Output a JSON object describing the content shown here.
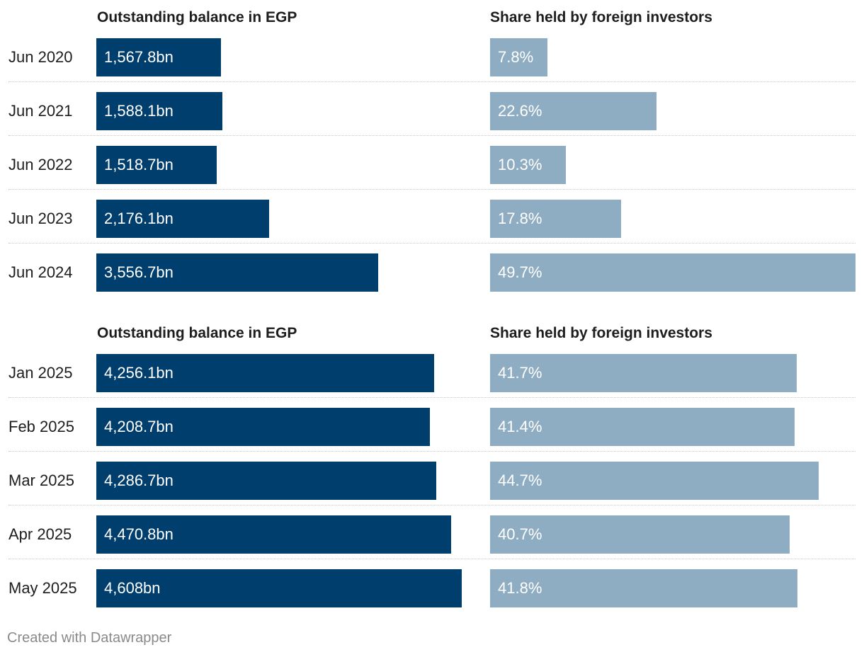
{
  "chart_data": [
    {
      "type": "bar",
      "orientation": "horizontal",
      "columns": [
        "Outstanding balance in EGP",
        "Share held by foreign investors"
      ],
      "categories": [
        "Jun 2020",
        "Jun 2021",
        "Jun 2022",
        "Jun 2023",
        "Jun 2024"
      ],
      "series": [
        {
          "name": "Outstanding balance in EGP",
          "unit": "bn EGP",
          "values": [
            1567.8,
            1588.1,
            1518.7,
            2176.1,
            3556.7
          ],
          "labels": [
            "1,567.8bn",
            "1,588.1bn",
            "1,518.7bn",
            "2,176.1bn",
            "3,556.7bn"
          ]
        },
        {
          "name": "Share held by foreign investors",
          "unit": "%",
          "values": [
            7.8,
            22.6,
            10.3,
            17.8,
            49.7
          ],
          "labels": [
            "7.8%",
            "22.6%",
            "10.3%",
            "17.8%",
            "49.7%"
          ]
        }
      ]
    },
    {
      "type": "bar",
      "orientation": "horizontal",
      "columns": [
        "Outstanding balance in EGP",
        "Share held by foreign investors"
      ],
      "categories": [
        "Jan 2025",
        "Feb 2025",
        "Mar 2025",
        "Apr 2025",
        "May 2025"
      ],
      "series": [
        {
          "name": "Outstanding balance in EGP",
          "unit": "bn EGP",
          "values": [
            4256.1,
            4208.7,
            4286.7,
            4470.8,
            4608
          ],
          "labels": [
            "4,256.1bn",
            "4,208.7bn",
            "4,286.7bn",
            "4,470.8bn",
            "4,608bn"
          ]
        },
        {
          "name": "Share held by foreign investors",
          "unit": "%",
          "values": [
            41.7,
            41.4,
            44.7,
            40.7,
            41.8
          ],
          "labels": [
            "41.7%",
            "41.4%",
            "44.7%",
            "40.7%",
            "41.8%"
          ]
        }
      ]
    }
  ],
  "scales": {
    "balance_max": 4608,
    "share_max": 49.7
  },
  "colors": {
    "balance_bar": "#003e6e",
    "share_bar": "#8fadc2"
  },
  "footer": "Created with Datawrapper"
}
